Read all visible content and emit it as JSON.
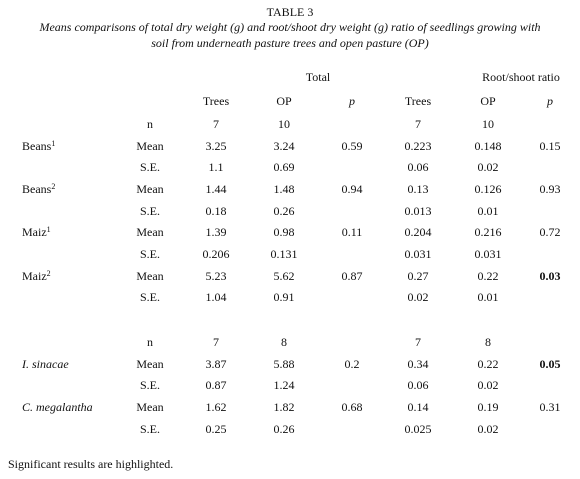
{
  "header": {
    "title": "TABLE 3",
    "caption": [
      "Means comparisons of total dry weight (g) and root/shoot dry weight (g) ratio of seedlings growing with",
      "soil from underneath pasture trees and open pasture (OP)"
    ]
  },
  "table": {
    "groups": [
      "Total",
      "Root/shoot ratio"
    ],
    "columns": [
      "Trees",
      "OP",
      "p",
      "Trees",
      "OP",
      "p"
    ],
    "italic_columns": [
      2,
      5
    ],
    "rows": [
      {
        "stat": "n",
        "values": [
          "7",
          "10",
          null,
          "7",
          "10",
          null
        ]
      },
      {
        "label": "Beans",
        "sup": "1",
        "stat": "Mean",
        "values": [
          "3.25",
          "3.24",
          "0.59",
          "0.223",
          "0.148",
          "0.15"
        ]
      },
      {
        "stat": "S.E.",
        "values": [
          "1.1",
          "0.69",
          null,
          "0.06",
          "0.02",
          null
        ]
      },
      {
        "label": "Beans",
        "sup": "2",
        "stat": "Mean",
        "values": [
          "1.44",
          "1.48",
          "0.94",
          "0.13",
          "0.126",
          "0.93"
        ]
      },
      {
        "stat": "S.E.",
        "values": [
          "0.18",
          "0.26",
          null,
          "0.013",
          "0.01",
          null
        ]
      },
      {
        "label": "Maiz",
        "sup": "1",
        "stat": "Mean",
        "values": [
          "1.39",
          "0.98",
          "0.11",
          "0.204",
          "0.216",
          "0.72"
        ]
      },
      {
        "stat": "S.E.",
        "values": [
          "0.206",
          "0.131",
          null,
          "0.031",
          "0.031",
          null
        ]
      },
      {
        "label": "Maiz",
        "sup": "2",
        "stat": "Mean",
        "values": [
          "5.23",
          "5.62",
          "0.87",
          "0.27",
          "0.22",
          "0.03"
        ],
        "highlight": [
          5
        ]
      },
      {
        "stat": "S.E.",
        "values": [
          "1.04",
          "0.91",
          null,
          "0.02",
          "0.01",
          null
        ]
      },
      {
        "stat": "n",
        "values": [
          "7",
          "8",
          null,
          "7",
          "8",
          null
        ]
      },
      {
        "label": "I. sinacae",
        "italic": true,
        "stat": "Mean",
        "values": [
          "3.87",
          "5.88",
          "0.2",
          "0.34",
          "0.22",
          "0.05"
        ],
        "highlight": [
          5
        ]
      },
      {
        "stat": "S.E.",
        "values": [
          "0.87",
          "1.24",
          null,
          "0.06",
          "0.02",
          null
        ]
      },
      {
        "label": "C. megalantha",
        "italic": true,
        "stat": "Mean",
        "values": [
          "1.62",
          "1.82",
          "0.68",
          "0.14",
          "0.19",
          "0.31"
        ]
      },
      {
        "stat": "S.E.",
        "values": [
          "0.25",
          "0.26",
          null,
          "0.025",
          "0.02",
          null
        ]
      }
    ]
  },
  "footnote": "Significant results are highlighted."
}
